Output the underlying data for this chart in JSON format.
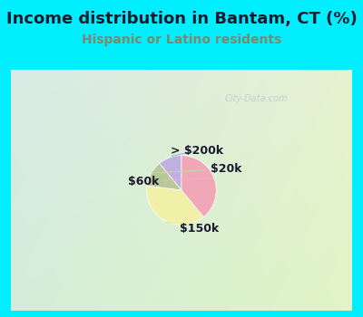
{
  "title": "Income distribution in Bantam, CT (%)",
  "subtitle": "Hispanic or Latino residents",
  "title_color": "#1a1a2e",
  "subtitle_color": "#7a8a6a",
  "bg_color": "#00eeff",
  "slices": [
    {
      "label": "> $200k",
      "value": 11,
      "color": "#c0b0e0"
    },
    {
      "label": "$20k",
      "value": 12,
      "color": "#b8c898"
    },
    {
      "label": "$150k",
      "value": 38,
      "color": "#f0f0a8"
    },
    {
      "label": "$60k",
      "value": 39,
      "color": "#f0a8b8"
    }
  ],
  "label_color": "#1a1a2e",
  "label_fontsize": 9,
  "title_fontsize": 13,
  "subtitle_fontsize": 10,
  "watermark": "City-Data.com",
  "watermark_color": "#aabbcc",
  "chart_grad_left": "#d8ede8",
  "chart_grad_right": "#ddeedd"
}
